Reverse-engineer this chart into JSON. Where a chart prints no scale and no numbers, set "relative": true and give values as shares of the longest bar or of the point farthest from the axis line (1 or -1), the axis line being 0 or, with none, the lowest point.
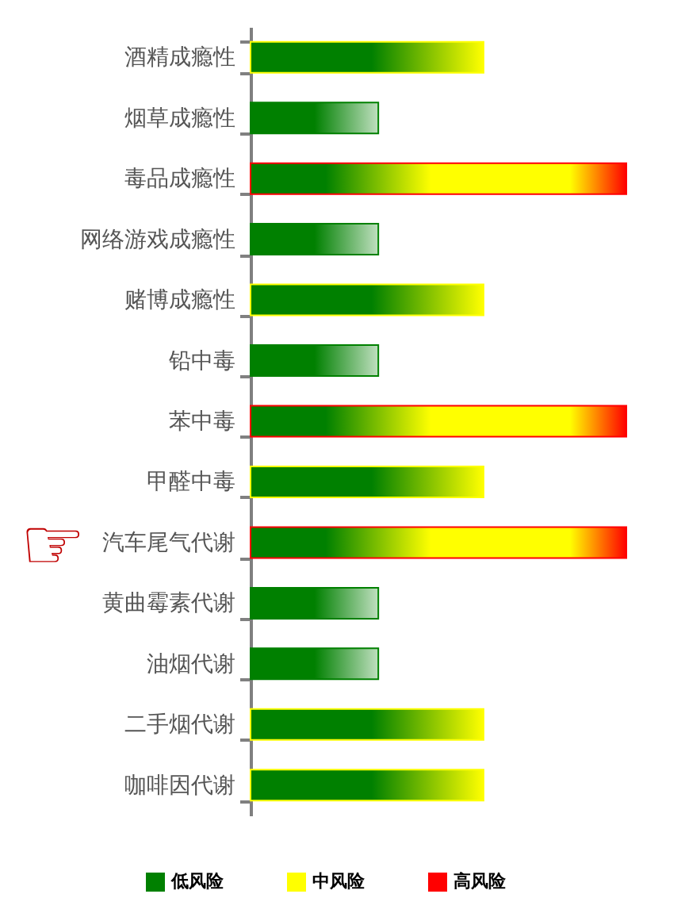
{
  "chart_data": {
    "type": "bar",
    "orientation": "horizontal",
    "stacked": true,
    "relative": true,
    "categories": [
      "酒精成瘾性",
      "烟草成瘾性",
      "毒品成瘾性",
      "网络游戏成瘾性",
      "赌博成瘾性",
      "铅中毒",
      "苯中毒",
      "甲醛中毒",
      "汽车尾气代谢",
      "黄曲霉素代谢",
      "油烟代谢",
      "二手烟代谢",
      "咖啡因代谢"
    ],
    "series": [
      {
        "name": "低风险",
        "color": "#008000",
        "values": [
          null,
          0.34,
          null,
          0.34,
          null,
          0.34,
          null,
          null,
          null,
          0.34,
          0.34,
          null,
          null
        ]
      },
      {
        "name": "中风险",
        "color": "#ffff00",
        "values": [
          0.62,
          null,
          null,
          null,
          0.62,
          null,
          null,
          0.62,
          null,
          null,
          null,
          0.62,
          0.62
        ]
      },
      {
        "name": "高风险",
        "color": "#ff0000",
        "values": [
          null,
          null,
          1,
          null,
          null,
          null,
          1,
          null,
          1,
          null,
          null,
          null,
          null
        ]
      }
    ],
    "legend": "bottom",
    "tick_labels": "y",
    "annotations": [
      "☞"
    ]
  }
}
